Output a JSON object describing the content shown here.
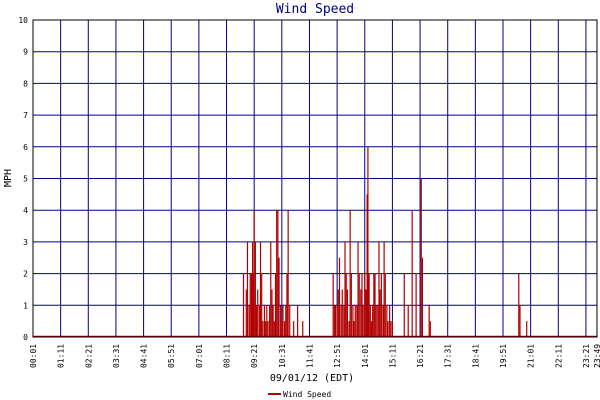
{
  "chart_data": {
    "type": "bar",
    "title": "Wind Speed",
    "xlabel": "09/01/12 (EDT)",
    "ylabel": "MPH",
    "ylim": [
      0,
      10
    ],
    "yticks": [
      "0",
      "1",
      "2",
      "3",
      "4",
      "5",
      "6",
      "7",
      "8",
      "9",
      "10"
    ],
    "xticks": [
      "00:01",
      "01:11",
      "02:21",
      "03:31",
      "04:41",
      "05:51",
      "07:01",
      "08:11",
      "09:21",
      "10:31",
      "11:41",
      "12:51",
      "14:01",
      "15:11",
      "16:21",
      "17:31",
      "18:41",
      "19:51",
      "21:01",
      "22:11",
      "23:21",
      "23:49"
    ],
    "grid": true,
    "legend_position": "bottom",
    "colors": {
      "series": "#b00000",
      "grid": "#000080",
      "title": "#000080"
    },
    "series": [
      {
        "name": "Wind Speed",
        "points": [
          [
            "08:54",
            2
          ],
          [
            "09:01",
            1.5
          ],
          [
            "09:04",
            3
          ],
          [
            "09:08",
            1
          ],
          [
            "09:11",
            2
          ],
          [
            "09:14",
            2
          ],
          [
            "09:17",
            3
          ],
          [
            "09:19",
            2
          ],
          [
            "09:21",
            4
          ],
          [
            "09:24",
            3
          ],
          [
            "09:27",
            1
          ],
          [
            "09:30",
            1.5
          ],
          [
            "09:34",
            1
          ],
          [
            "09:37",
            3
          ],
          [
            "09:40",
            2
          ],
          [
            "09:43",
            0.5
          ],
          [
            "09:47",
            1
          ],
          [
            "09:50",
            0.5
          ],
          [
            "09:53",
            1
          ],
          [
            "09:56",
            0.5
          ],
          [
            "10:00",
            1
          ],
          [
            "10:03",
            3
          ],
          [
            "10:06",
            1.5
          ],
          [
            "10:09",
            1
          ],
          [
            "10:12",
            0.5
          ],
          [
            "10:15",
            2
          ],
          [
            "10:18",
            4
          ],
          [
            "10:21",
            4
          ],
          [
            "10:24",
            2.5
          ],
          [
            "10:28",
            1
          ],
          [
            "10:31",
            0.5
          ],
          [
            "10:34",
            1
          ],
          [
            "10:38",
            0.5
          ],
          [
            "10:41",
            1
          ],
          [
            "10:44",
            2
          ],
          [
            "10:47",
            4
          ],
          [
            "10:51",
            1
          ],
          [
            "11:01",
            0.5
          ],
          [
            "11:11",
            1
          ],
          [
            "11:24",
            0.5
          ],
          [
            "12:41",
            2
          ],
          [
            "12:44",
            1
          ],
          [
            "12:47",
            1
          ],
          [
            "12:51",
            1
          ],
          [
            "12:54",
            1.5
          ],
          [
            "12:57",
            2.5
          ],
          [
            "13:01",
            1
          ],
          [
            "13:04",
            1.5
          ],
          [
            "13:08",
            1
          ],
          [
            "13:11",
            3
          ],
          [
            "13:14",
            2
          ],
          [
            "13:17",
            1.5
          ],
          [
            "13:21",
            0.5
          ],
          [
            "13:24",
            4
          ],
          [
            "13:27",
            2
          ],
          [
            "13:31",
            1
          ],
          [
            "13:34",
            0.5
          ],
          [
            "13:37",
            1
          ],
          [
            "13:41",
            1
          ],
          [
            "13:44",
            3
          ],
          [
            "13:47",
            2
          ],
          [
            "13:51",
            1.5
          ],
          [
            "13:54",
            2
          ],
          [
            "13:57",
            1
          ],
          [
            "14:01",
            2
          ],
          [
            "14:04",
            1.5
          ],
          [
            "14:07",
            4.5
          ],
          [
            "14:09",
            6
          ],
          [
            "14:12",
            2
          ],
          [
            "14:15",
            1
          ],
          [
            "14:18",
            0.5
          ],
          [
            "14:21",
            1
          ],
          [
            "14:24",
            2
          ],
          [
            "14:27",
            2
          ],
          [
            "14:30",
            1
          ],
          [
            "14:34",
            1
          ],
          [
            "14:37",
            3
          ],
          [
            "14:40",
            1.5
          ],
          [
            "14:43",
            2
          ],
          [
            "14:47",
            1
          ],
          [
            "14:50",
            3
          ],
          [
            "14:53",
            2
          ],
          [
            "14:57",
            1
          ],
          [
            "15:00",
            0.5
          ],
          [
            "15:04",
            1
          ],
          [
            "15:07",
            0.5
          ],
          [
            "15:11",
            0.5
          ],
          [
            "15:41",
            2
          ],
          [
            "15:51",
            1
          ],
          [
            "16:01",
            4
          ],
          [
            "16:11",
            2
          ],
          [
            "16:24",
            5
          ],
          [
            "16:27",
            2.5
          ],
          [
            "16:44",
            1
          ],
          [
            "16:47",
            0.5
          ],
          [
            "20:31",
            2
          ],
          [
            "20:34",
            1
          ],
          [
            "20:51",
            0.5
          ]
        ]
      }
    ]
  }
}
